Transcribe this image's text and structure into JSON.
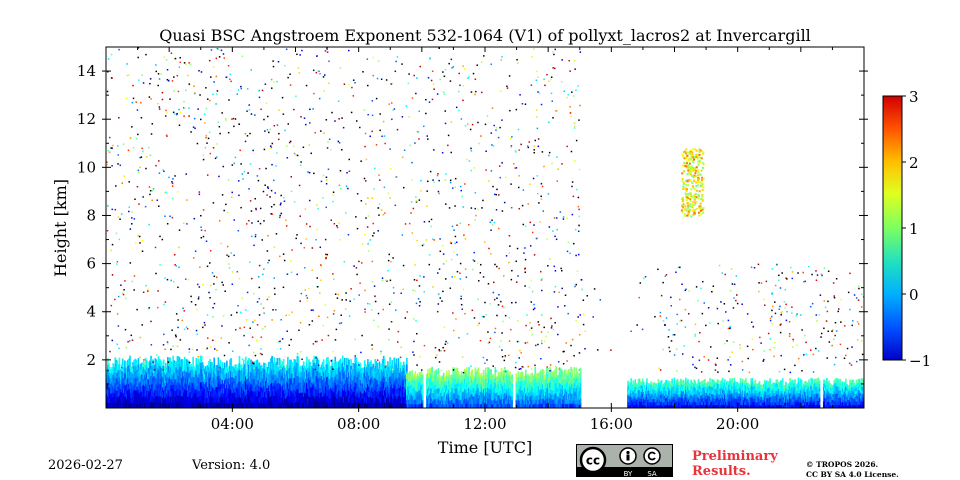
{
  "chart_data": {
    "type": "heatmap",
    "title": "Quasi BSC Angstroem Exponent 532-1064 (V1) of pollyxt_lacros2 at Invercargill",
    "xlabel": "Time [UTC]",
    "ylabel": "Height [km]",
    "xlim_hours": [
      0,
      24
    ],
    "ylim_km": [
      0,
      15
    ],
    "x_ticks": [
      {
        "hour": 4,
        "label": "04:00"
      },
      {
        "hour": 8,
        "label": "08:00"
      },
      {
        "hour": 12,
        "label": "12:00"
      },
      {
        "hour": 16,
        "label": "16:00"
      },
      {
        "hour": 20,
        "label": "20:00"
      }
    ],
    "y_ticks": [
      {
        "km": 2,
        "label": "2"
      },
      {
        "km": 4,
        "label": "4"
      },
      {
        "km": 6,
        "label": "6"
      },
      {
        "km": 8,
        "label": "8"
      },
      {
        "km": 10,
        "label": "10"
      },
      {
        "km": 12,
        "label": "12"
      },
      {
        "km": 14,
        "label": "14"
      }
    ],
    "colorbar": {
      "range": [
        -1,
        3
      ],
      "ticks": [
        {
          "value": -1,
          "label": "−1"
        },
        {
          "value": 0,
          "label": "0"
        },
        {
          "value": 1,
          "label": "1"
        },
        {
          "value": 2,
          "label": "2"
        },
        {
          "value": 3,
          "label": "3"
        }
      ],
      "colormap": "jet"
    },
    "features": [
      {
        "name": "boundary-layer-morning",
        "t_start": 0.0,
        "t_end": 9.5,
        "h_top_km": 1.9,
        "value": 0.6
      },
      {
        "name": "boundary-layer-midday",
        "t_start": 9.5,
        "t_end": 15.0,
        "h_top_km": 1.5,
        "value": 1.2
      },
      {
        "name": "boundary-layer-evening",
        "t_start": 16.5,
        "t_end": 24.0,
        "h_top_km": 1.1,
        "value": 0.9
      },
      {
        "name": "cirrus-layer",
        "t_start": 18.2,
        "t_end": 18.9,
        "h_bottom_km": 8.0,
        "h_top_km": 10.8,
        "value": 1.4
      }
    ]
  },
  "footer": {
    "date": "2026-02-27",
    "version": "Version: 4.0",
    "cc_icons": [
      "cc-icon",
      "by-icon",
      "sa-icon"
    ],
    "cc_by_label": "BY",
    "cc_sa_label": "SA",
    "preliminary_line1": "Preliminary",
    "preliminary_line2": "Results.",
    "license_line1": "© TROPOS 2026.",
    "license_line2": "CC BY SA 4.0 License."
  }
}
